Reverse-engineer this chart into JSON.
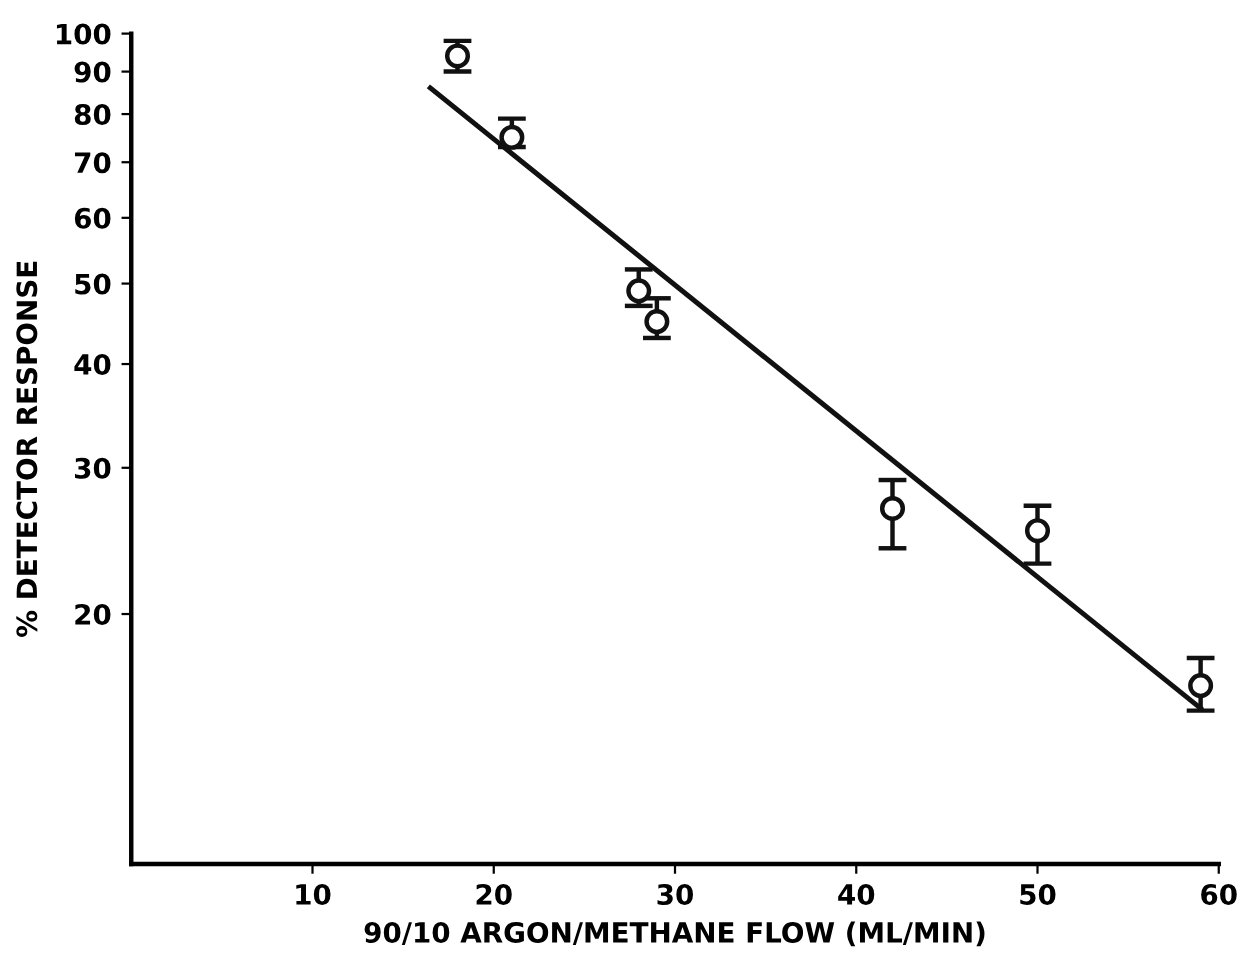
{
  "chart_data": {
    "type": "scatter",
    "xlabel": "90/10 ARGON/METHANE FLOW (ML/MIN)",
    "ylabel": "% DETECTOR RESPONSE",
    "log": "y",
    "xlim": [
      0,
      60
    ],
    "ylim": [
      10,
      100
    ],
    "xticks": [
      10,
      20,
      30,
      40,
      50,
      60
    ],
    "yticks": [
      20,
      30,
      40,
      50,
      60,
      70,
      80,
      90,
      100
    ],
    "grid": false,
    "legend": false,
    "series": [
      {
        "type": "scatter",
        "color": "#111111",
        "marker": "circle",
        "x": [
          18,
          21,
          28,
          29,
          42,
          50,
          59
        ],
        "values": [
          94,
          75,
          49,
          45,
          26.8,
          25.2,
          16.4
        ],
        "errors": [
          [
            90,
            98
          ],
          [
            73,
            79
          ],
          [
            47,
            52
          ],
          [
            43,
            48
          ],
          [
            24,
            29
          ],
          [
            23,
            27
          ],
          [
            15.3,
            17.7
          ]
        ]
      },
      {
        "type": "line",
        "color": "#111111",
        "marker": "none",
        "line_style": "solid",
        "x": [
          16.5,
          59
        ],
        "values": [
          86,
          15.4
        ]
      }
    ]
  }
}
